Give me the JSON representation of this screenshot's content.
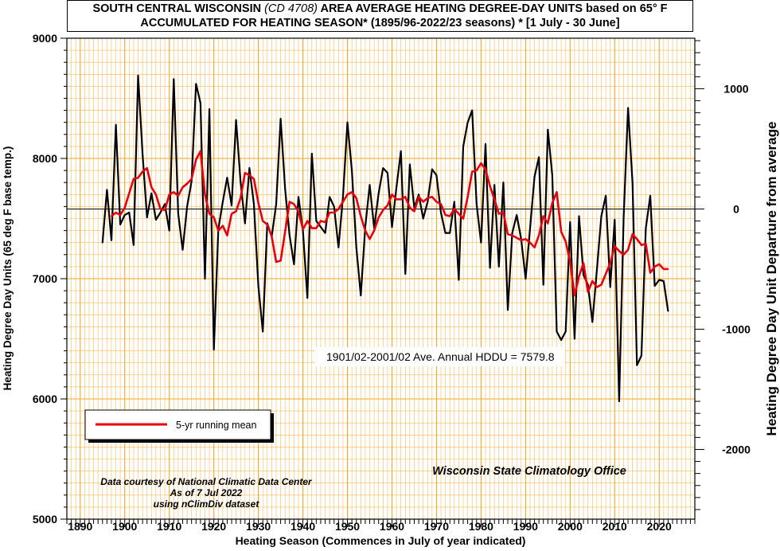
{
  "chart_data": {
    "type": "line",
    "title": {
      "line1_a": "SOUTH CENTRAL WISCONSIN ",
      "line1_italic": "(CD 4708)",
      "line1_b": " AREA AVERAGE HEATING DEGREE-DAY UNITS based on 65° F",
      "line2": "ACCUMULATED FOR HEATING SEASON*  (1895/96-2022/23 seasons) * [1 July - 30 June]"
    },
    "xlabel": "Heating Season (Commences in July of year indicated)",
    "ylabel_left": "Heating Degree Day Units (65 deg F base temp.)",
    "ylabel_right": "Heating Degree Day Unit Departure from average",
    "xlim": [
      1887,
      2028
    ],
    "ylim_left": [
      5000,
      9000
    ],
    "ylim_right_departure": [
      -2579.8,
      1420.2
    ],
    "x_ticks": [
      1890,
      1900,
      1910,
      1920,
      1930,
      1940,
      1950,
      1960,
      1970,
      1980,
      1990,
      2000,
      2010,
      2020
    ],
    "y_ticks_left": [
      5000,
      6000,
      7000,
      8000,
      9000
    ],
    "y_ticks_right": [
      1000,
      0,
      -1000,
      -2000
    ],
    "y_tick_labels_right": [
      "1000",
      "0",
      "-1000",
      "-2000"
    ],
    "grid": true,
    "average": 7579.8,
    "average_label": "1901/02-2001/02 Ave. Annual HDDU = 7579.8",
    "legend": {
      "position": "lower-left",
      "label": "5-yr running mean"
    },
    "credits": [
      "Data courtesy of National Climatic Data Center",
      "As of 7 Jul 2022",
      "using nClimDiv dataset"
    ],
    "office": "Wisconsin State Climatology Office",
    "colors": {
      "annual": "#000000",
      "running_mean": "#e8000b",
      "grid": "#f5a623",
      "title_box": "#000000"
    },
    "series": [
      {
        "key": "annual",
        "start_year": 1895,
        "values": [
          7300,
          7740,
          7320,
          8280,
          7450,
          7530,
          7550,
          7280,
          8690,
          8040,
          7510,
          7710,
          7490,
          7550,
          7620,
          7400,
          8660,
          7540,
          7240,
          7600,
          7810,
          8620,
          8460,
          7000,
          8410,
          6410,
          7410,
          7640,
          7840,
          7610,
          8320,
          7810,
          7460,
          7920,
          7620,
          6940,
          6560,
          7460,
          7350,
          7620,
          8330,
          7750,
          7360,
          7120,
          7680,
          7400,
          6840,
          8040,
          7480,
          7430,
          7380,
          7680,
          7600,
          7260,
          7680,
          8300,
          7900,
          7260,
          6860,
          7430,
          7780,
          7420,
          7710,
          7920,
          7880,
          7430,
          7760,
          8060,
          7040,
          7950,
          7590,
          7700,
          7500,
          7640,
          7910,
          7860,
          7550,
          7380,
          7380,
          7640,
          6990,
          8100,
          8300,
          8400,
          7620,
          7300,
          8120,
          7090,
          7780,
          7100,
          7800,
          6740,
          7380,
          7530,
          7330,
          7000,
          7420,
          7850,
          8010,
          6950,
          8240,
          7860,
          6560,
          6490,
          6560,
          7470,
          6500,
          7520,
          7030,
          6950,
          6640,
          7070,
          7520,
          7690,
          6930,
          7490,
          5980,
          7500,
          8420,
          7800,
          6280,
          6360,
          7420,
          7690,
          6940,
          6990,
          6980,
          6730
        ]
      },
      {
        "key": "running_mean",
        "label": "5-yr running mean",
        "start_year": 1897,
        "values": [
          7520,
          7550,
          7530,
          7590,
          7710,
          7830,
          7840,
          7890,
          7920,
          7760,
          7700,
          7580,
          7570,
          7700,
          7720,
          7690,
          7760,
          7790,
          7830,
          7990,
          8060,
          7700,
          7540,
          7510,
          7400,
          7440,
          7360,
          7540,
          7560,
          7670,
          7880,
          7860,
          7830,
          7630,
          7480,
          7450,
          7350,
          7140,
          7150,
          7390,
          7640,
          7620,
          7560,
          7410,
          7480,
          7420,
          7420,
          7480,
          7470,
          7550,
          7550,
          7580,
          7640,
          7700,
          7720,
          7670,
          7520,
          7400,
          7330,
          7400,
          7510,
          7570,
          7610,
          7700,
          7660,
          7660,
          7680,
          7590,
          7560,
          7680,
          7640,
          7670,
          7680,
          7640,
          7620,
          7530,
          7520,
          7580,
          7540,
          7500,
          7680,
          7890,
          7900,
          7960,
          7910,
          7770,
          7660,
          7540,
          7550,
          7370,
          7360,
          7340,
          7320,
          7330,
          7300,
          7260,
          7360,
          7520,
          7460,
          7630,
          7720,
          7390,
          7310,
          7140,
          6860,
          7020,
          7130,
          6890,
          6980,
          6930,
          6950,
          7040,
          7130,
          7270,
          7230,
          7200,
          7240,
          7370,
          7330,
          7280,
          7290,
          7050,
          7100,
          7120,
          7080,
          7080
        ]
      }
    ]
  }
}
